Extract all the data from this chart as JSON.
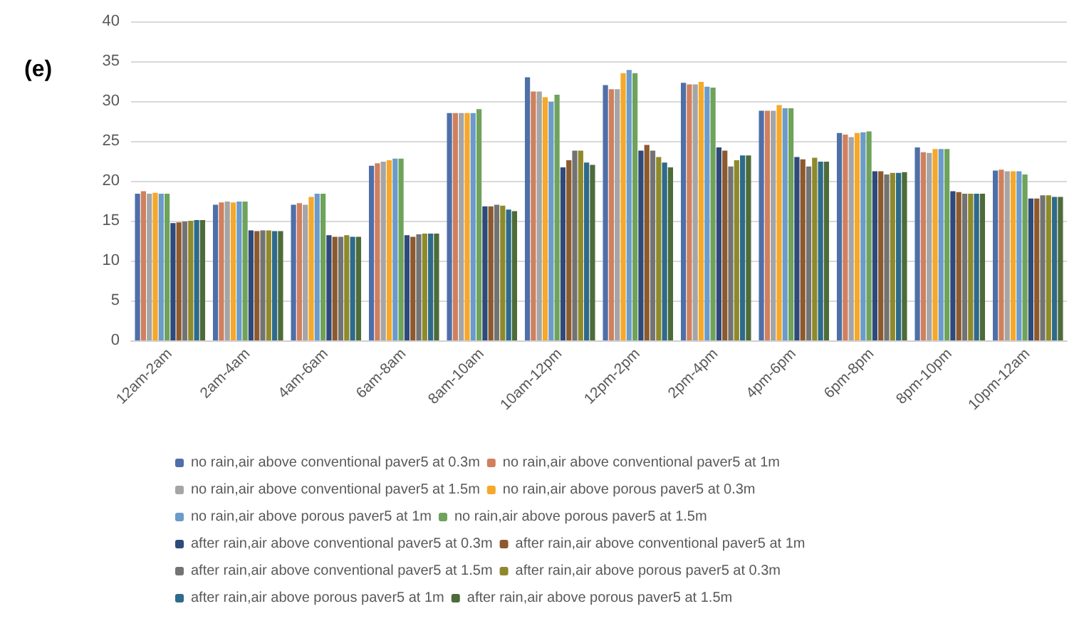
{
  "chart_data": {
    "type": "bar",
    "title": "(e)",
    "categories": [
      "12am-2am",
      "2am-4am",
      "4am-6am",
      "6am-8am",
      "8am-10am",
      "10am-12pm",
      "12pm-2pm",
      "2pm-4pm",
      "4pm-6pm",
      "6pm-8pm",
      "8pm-10pm",
      "10pm-12am"
    ],
    "series": [
      {
        "name": "no rain,air above conventional paver5 at 0.3m",
        "color": "#4f6fa8",
        "values": [
          18.4,
          17.0,
          17.0,
          21.9,
          28.5,
          33.0,
          32.0,
          32.3,
          28.8,
          26.0,
          24.2,
          21.3
        ]
      },
      {
        "name": "no rain,air above conventional paver5 at 1m",
        "color": "#d0805e",
        "values": [
          18.7,
          17.3,
          17.2,
          22.2,
          28.5,
          31.2,
          31.5,
          32.1,
          28.8,
          25.8,
          23.6,
          21.4
        ]
      },
      {
        "name": "no rain,air above conventional paver5 at 1.5m",
        "color": "#a5a5a5",
        "values": [
          18.4,
          17.4,
          17.0,
          22.4,
          28.5,
          31.2,
          31.5,
          32.1,
          28.8,
          25.5,
          23.5,
          21.2
        ]
      },
      {
        "name": "no rain,air above porous paver5 at 0.3m",
        "color": "#f5a82a",
        "values": [
          18.5,
          17.3,
          18.0,
          22.6,
          28.5,
          30.5,
          33.5,
          32.4,
          29.5,
          26.0,
          24.0,
          21.2
        ]
      },
      {
        "name": "no rain,air above porous paver5 at 1m",
        "color": "#6b9bc8",
        "values": [
          18.4,
          17.4,
          18.4,
          22.8,
          28.5,
          29.9,
          33.9,
          31.8,
          29.1,
          26.1,
          24.0,
          21.2
        ]
      },
      {
        "name": "no rain,air above porous paver5 at 1.5m",
        "color": "#6fa35c",
        "values": [
          18.4,
          17.4,
          18.4,
          22.8,
          29.0,
          30.8,
          33.5,
          31.7,
          29.1,
          26.2,
          24.0,
          20.8
        ]
      },
      {
        "name": "after rain,air above conventional paver5 at 0.3m",
        "color": "#2f4a7a",
        "values": [
          14.7,
          13.8,
          13.2,
          13.2,
          16.8,
          21.7,
          23.8,
          24.2,
          23.0,
          21.2,
          18.7,
          17.8
        ]
      },
      {
        "name": "after rain,air above conventional paver5 at 1m",
        "color": "#8c5a2e",
        "values": [
          14.8,
          13.7,
          13.0,
          13.0,
          16.8,
          22.6,
          24.5,
          23.8,
          22.7,
          21.2,
          18.6,
          17.8
        ]
      },
      {
        "name": "after rain,air above conventional paver5 at 1.5m",
        "color": "#737373",
        "values": [
          14.9,
          13.8,
          13.0,
          13.3,
          17.0,
          23.8,
          23.8,
          21.8,
          21.8,
          20.8,
          18.4,
          18.2
        ]
      },
      {
        "name": "after rain,air above porous paver5 at 0.3m",
        "color": "#8e8a2c",
        "values": [
          15.0,
          13.8,
          13.2,
          13.4,
          16.9,
          23.8,
          23.0,
          22.6,
          22.9,
          21.0,
          18.4,
          18.2
        ]
      },
      {
        "name": "after rain,air above porous paver5 at 1m",
        "color": "#2e6a8a",
        "values": [
          15.1,
          13.7,
          13.0,
          13.4,
          16.4,
          22.3,
          22.3,
          23.2,
          22.4,
          21.0,
          18.4,
          18.0
        ]
      },
      {
        "name": "after rain,air above porous paver5 at 1.5m",
        "color": "#4e6b3a",
        "values": [
          15.1,
          13.7,
          13.0,
          13.4,
          16.2,
          22.0,
          21.7,
          23.2,
          22.4,
          21.1,
          18.4,
          18.0
        ]
      }
    ],
    "ylim": [
      0,
      40
    ],
    "yticks": [
      0,
      5,
      10,
      15,
      20,
      25,
      30,
      35,
      40
    ],
    "grid": "y",
    "legend": "bottom"
  }
}
